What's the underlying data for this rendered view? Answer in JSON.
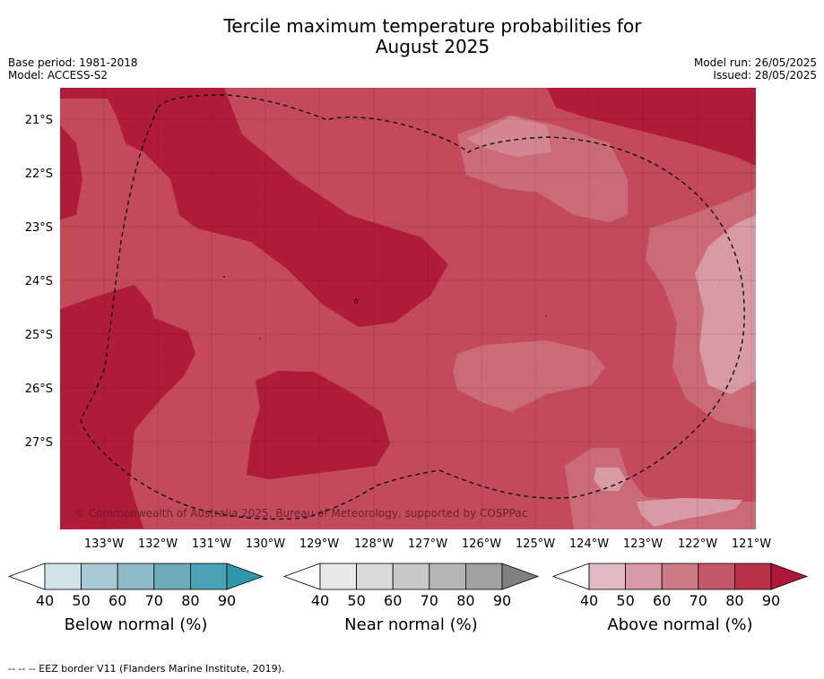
{
  "title_line1": "Tercile maximum temperature probabilities for",
  "title_line2": "August 2025",
  "base_period": "Base period: 1981-2018",
  "model": "Model: ACCESS-S2",
  "model_run": "Model run: 26/05/2025",
  "issued": "Issued: 28/05/2025",
  "copyright": "© Commonwealth of Australia 2025, Bureau of Meteorology, supported by COSPPac",
  "footnote": "--  --  -- EEZ border V11 (Flanders Marine Institute, 2019).",
  "lat_labels": [
    "21°S",
    "22°S",
    "23°S",
    "24°S",
    "25°S",
    "26°S",
    "27°S"
  ],
  "lon_labels": [
    "133°W",
    "132°W",
    "131°W",
    "130°W",
    "129°W",
    "128°W",
    "127°W",
    "126°W",
    "125°W",
    "124°W",
    "123°W",
    "122°W",
    "121°W"
  ],
  "colorbars": [
    {
      "label": "Below normal (%)",
      "ticks": [
        "40",
        "50",
        "60",
        "70",
        "80",
        "90"
      ],
      "colors": [
        "#cfe3e8",
        "#a9cad2",
        "#8cbac6",
        "#6eabba",
        "#4aa1b3",
        "#2f97ab"
      ]
    },
    {
      "label": "Near normal (%)",
      "ticks": [
        "40",
        "50",
        "60",
        "70",
        "80",
        "90"
      ],
      "colors": [
        "#e8e8e8",
        "#d9d9d9",
        "#c8c8c8",
        "#b5b5b5",
        "#a0a0a0",
        "#808080"
      ]
    },
    {
      "label": "Above normal (%)",
      "ticks": [
        "40",
        "50",
        "60",
        "70",
        "80",
        "90"
      ],
      "colors": [
        "#e0b9c2",
        "#d89aa5",
        "#cc7a86",
        "#c35766",
        "#b93147",
        "#ad1737"
      ]
    }
  ],
  "map_colors": {
    "level_50": "#d89aa5",
    "level_60": "#cc6b78",
    "level_70": "#c24a5a",
    "level_80": "#b01c38",
    "eez_border": "#111111"
  }
}
